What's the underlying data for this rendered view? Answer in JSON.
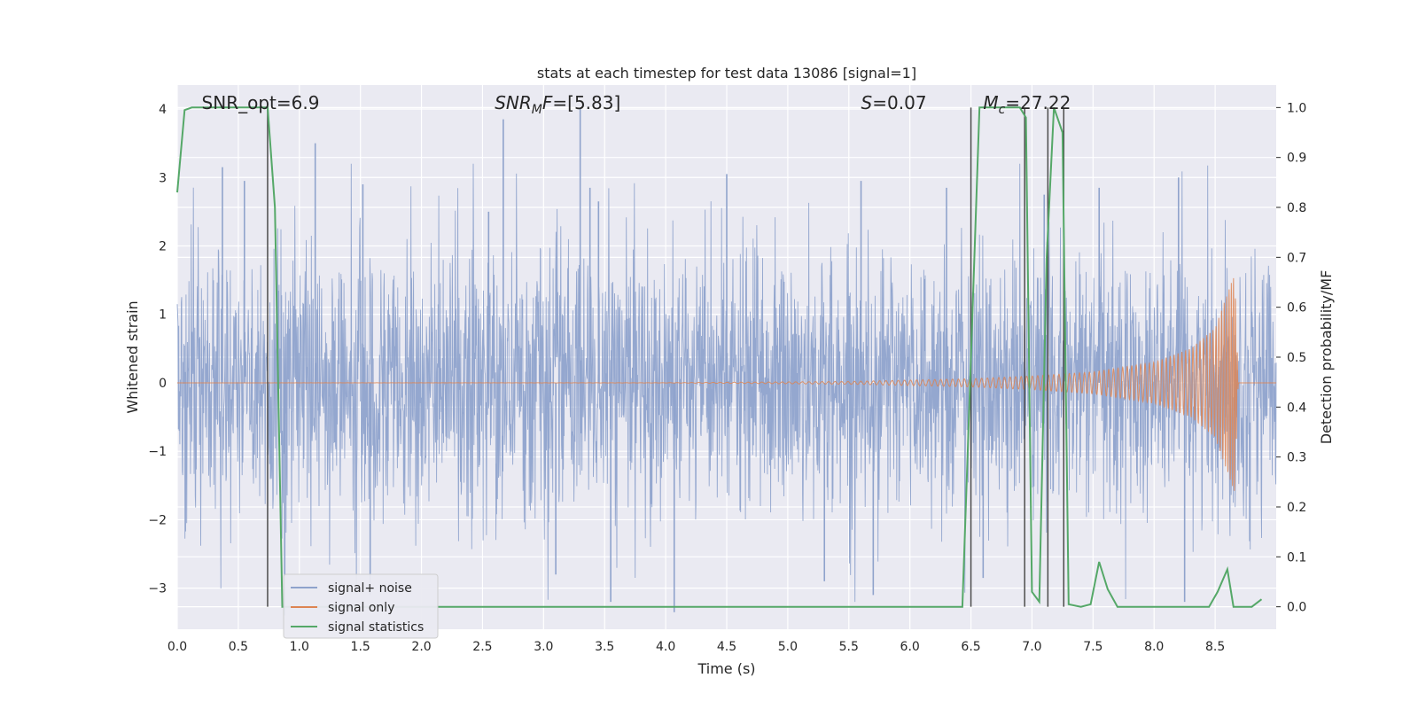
{
  "chart_data": {
    "type": "line",
    "title": "stats at each timestep for test data 13086 [signal=1]",
    "xlabel": "Time (s)",
    "ylabel_left": "Whitened strain",
    "ylabel_right": "Detection probability/MF",
    "xlim": [
      0,
      9.0
    ],
    "ylim_left": [
      -3.6,
      4.35
    ],
    "ylim_right": [
      -0.045,
      1.045
    ],
    "x_ticks": [
      0.0,
      0.5,
      1.0,
      1.5,
      2.0,
      2.5,
      3.0,
      3.5,
      4.0,
      4.5,
      5.0,
      5.5,
      6.0,
      6.5,
      7.0,
      7.5,
      8.0,
      8.5
    ],
    "x_tick_labels": [
      "0.0",
      "0.5",
      "1.0",
      "1.5",
      "2.0",
      "2.5",
      "3.0",
      "3.5",
      "4.0",
      "4.5",
      "5.0",
      "5.5",
      "6.0",
      "6.5",
      "7.0",
      "7.5",
      "8.0",
      "8.5"
    ],
    "y_left_ticks": [
      -3,
      -2,
      -1,
      0,
      1,
      2,
      3,
      4
    ],
    "y_left_tick_labels": [
      "−3",
      "−2",
      "−1",
      "0",
      "1",
      "2",
      "3",
      "4"
    ],
    "y_right_ticks": [
      0.0,
      0.1,
      0.2,
      0.3,
      0.4,
      0.5,
      0.6,
      0.7,
      0.8,
      0.9,
      1.0
    ],
    "y_right_tick_labels": [
      "0.0",
      "0.1",
      "0.2",
      "0.3",
      "0.4",
      "0.5",
      "0.6",
      "0.7",
      "0.8",
      "0.9",
      "1.0"
    ],
    "grid": true,
    "legend_position": "lower-left",
    "annotations": [
      {
        "text": "SNR_opt=6.9",
        "x": 0.2
      },
      {
        "text": "SNR_MF=[5.83]",
        "x": 2.6
      },
      {
        "text": "S=0.07",
        "x": 5.6
      },
      {
        "text": "M_c=27.22",
        "x": 6.6
      }
    ],
    "series": [
      {
        "name": "signal+ noise",
        "axis": "left",
        "color": "#8fa3cc",
        "kind": "noise",
        "approx_std": 0.95,
        "peaks": [
          [
            0.37,
            3.15
          ],
          [
            0.55,
            2.95
          ],
          [
            1.13,
            3.5
          ],
          [
            1.52,
            2.9
          ],
          [
            2.55,
            2.5
          ],
          [
            2.67,
            3.85
          ],
          [
            3.3,
            4.0
          ],
          [
            3.38,
            2.85
          ],
          [
            3.45,
            2.65
          ],
          [
            4.5,
            3.05
          ],
          [
            5.6,
            2.95
          ],
          [
            6.3,
            2.85
          ],
          [
            7.1,
            2.75
          ],
          [
            7.55,
            2.85
          ],
          [
            8.2,
            3.0
          ],
          [
            0.88,
            -3.4
          ],
          [
            1.58,
            -3.1
          ],
          [
            3.1,
            -2.8
          ],
          [
            3.55,
            -3.2
          ],
          [
            4.07,
            -3.35
          ],
          [
            5.3,
            -2.9
          ],
          [
            5.7,
            -3.1
          ],
          [
            6.6,
            -2.85
          ],
          [
            8.25,
            -3.2
          ]
        ]
      },
      {
        "name": "signal only",
        "axis": "left",
        "color": "#dd8452",
        "kind": "chirp",
        "envelope": [
          [
            0.0,
            0.0
          ],
          [
            4.0,
            0.002
          ],
          [
            5.5,
            0.02
          ],
          [
            6.5,
            0.06
          ],
          [
            7.0,
            0.1
          ],
          [
            7.5,
            0.16
          ],
          [
            8.0,
            0.3
          ],
          [
            8.3,
            0.5
          ],
          [
            8.5,
            0.8
          ],
          [
            8.6,
            1.3
          ],
          [
            8.66,
            1.6
          ],
          [
            8.69,
            0.0
          ],
          [
            9.0,
            0.0
          ]
        ],
        "period": [
          [
            4.0,
            0.06
          ],
          [
            6.0,
            0.05
          ],
          [
            7.0,
            0.045
          ],
          [
            8.0,
            0.035
          ],
          [
            8.4,
            0.028
          ],
          [
            8.6,
            0.02
          ],
          [
            8.68,
            0.015
          ]
        ]
      },
      {
        "name": "signal statistics",
        "axis": "right",
        "color": "#55a868",
        "x": [
          0.0,
          0.06,
          0.12,
          0.2,
          0.3,
          0.5,
          0.74,
          0.8,
          0.86,
          0.9,
          1.0,
          6.43,
          6.5,
          6.57,
          6.6,
          6.9,
          6.95,
          7.0,
          7.06,
          7.12,
          7.18,
          7.25,
          7.3,
          7.4,
          7.48,
          7.55,
          7.62,
          7.7,
          8.45,
          8.52,
          8.6,
          8.65,
          8.8,
          8.88
        ],
        "y": [
          0.83,
          0.995,
          1.0,
          1.0,
          1.0,
          1.0,
          1.0,
          0.8,
          0.0,
          0.0,
          0.0,
          0.0,
          0.5,
          1.0,
          1.0,
          1.0,
          0.98,
          0.03,
          0.01,
          0.7,
          1.0,
          0.95,
          0.005,
          0.0,
          0.005,
          0.09,
          0.035,
          0.0,
          0.0,
          0.03,
          0.075,
          0.0,
          0.0,
          0.015
        ]
      }
    ],
    "vertical_lines": [
      0.74,
      6.5,
      6.94,
      7.13,
      7.26
    ]
  }
}
